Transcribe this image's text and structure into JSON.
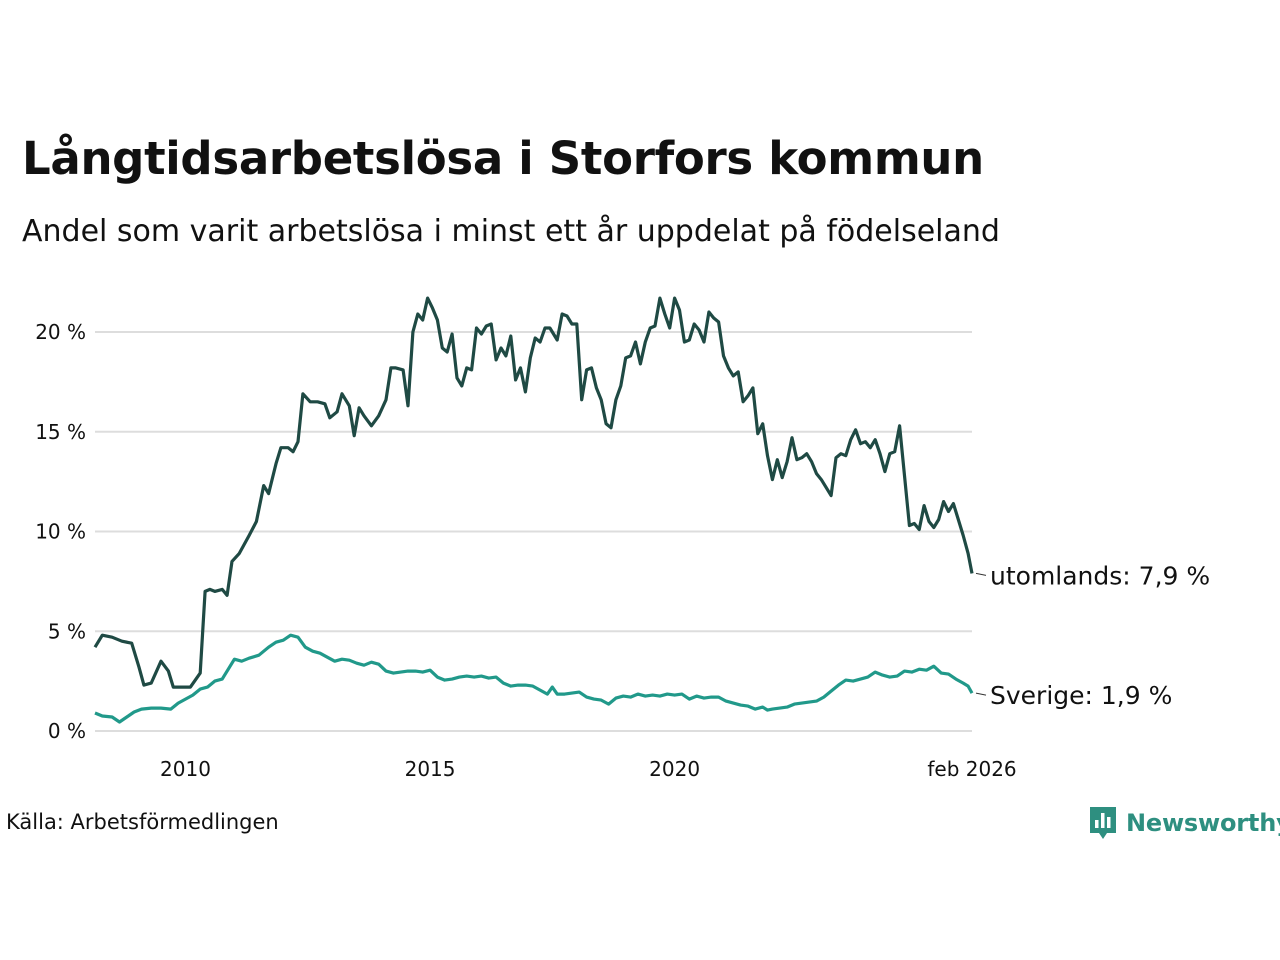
{
  "header": {
    "title": "Långtidsarbetslösa i Storfors kommun",
    "subtitle": "Andel som varit arbetslösa i minst ett år uppdelat på födelseland"
  },
  "footer": {
    "source": "Källa: Arbetsförmedlingen",
    "brand": "Newsworthy"
  },
  "colors": {
    "utomlands": "#1f4a44",
    "sverige": "#21998a",
    "grid": "#dddddd",
    "brand": "#2e8f80"
  },
  "chart_data": {
    "type": "line",
    "title": "Långtidsarbetslösa i Storfors kommun",
    "subtitle": "Andel som varit arbetslösa i minst ett år uppdelat på födelseland",
    "xlabel": "",
    "ylabel": "",
    "x_range": [
      2008.15,
      2026.08
    ],
    "ylim": [
      0,
      22
    ],
    "y_ticks": [
      {
        "value": 0,
        "label": "0 %"
      },
      {
        "value": 5,
        "label": "5 %"
      },
      {
        "value": 10,
        "label": "10 %"
      },
      {
        "value": 15,
        "label": "15 %"
      },
      {
        "value": 20,
        "label": "20 %"
      }
    ],
    "x_ticks": [
      {
        "value": 2010,
        "label": "2010"
      },
      {
        "value": 2015,
        "label": "2015"
      },
      {
        "value": 2020,
        "label": "2020"
      },
      {
        "value": 2026.08,
        "label": "feb 2026"
      }
    ],
    "grid": true,
    "series": [
      {
        "name": "utomlands",
        "end_label": "utomlands: 7,9 %",
        "points": [
          [
            2008.15,
            4.2
          ],
          [
            2008.3,
            4.8
          ],
          [
            2008.5,
            4.7
          ],
          [
            2008.7,
            4.5
          ],
          [
            2008.9,
            4.4
          ],
          [
            2009.05,
            3.2
          ],
          [
            2009.15,
            2.3
          ],
          [
            2009.3,
            2.4
          ],
          [
            2009.5,
            3.5
          ],
          [
            2009.65,
            3.0
          ],
          [
            2009.75,
            2.2
          ],
          [
            2009.9,
            2.2
          ],
          [
            2010.1,
            2.2
          ],
          [
            2010.3,
            2.9
          ],
          [
            2010.4,
            7.0
          ],
          [
            2010.5,
            7.1
          ],
          [
            2010.6,
            7.0
          ],
          [
            2010.75,
            7.1
          ],
          [
            2010.85,
            6.8
          ],
          [
            2010.95,
            8.5
          ],
          [
            2011.1,
            8.9
          ],
          [
            2011.3,
            9.8
          ],
          [
            2011.45,
            10.5
          ],
          [
            2011.6,
            12.3
          ],
          [
            2011.7,
            11.9
          ],
          [
            2011.85,
            13.4
          ],
          [
            2011.95,
            14.2
          ],
          [
            2012.1,
            14.2
          ],
          [
            2012.2,
            14.0
          ],
          [
            2012.3,
            14.5
          ],
          [
            2012.4,
            16.9
          ],
          [
            2012.55,
            16.5
          ],
          [
            2012.7,
            16.5
          ],
          [
            2012.85,
            16.4
          ],
          [
            2012.95,
            15.7
          ],
          [
            2013.1,
            16.0
          ],
          [
            2013.2,
            16.9
          ],
          [
            2013.35,
            16.3
          ],
          [
            2013.45,
            14.8
          ],
          [
            2013.55,
            16.2
          ],
          [
            2013.65,
            15.8
          ],
          [
            2013.8,
            15.3
          ],
          [
            2013.95,
            15.8
          ],
          [
            2014.1,
            16.6
          ],
          [
            2014.2,
            18.2
          ],
          [
            2014.3,
            18.2
          ],
          [
            2014.45,
            18.1
          ],
          [
            2014.55,
            16.3
          ],
          [
            2014.65,
            20.0
          ],
          [
            2014.75,
            20.9
          ],
          [
            2014.85,
            20.6
          ],
          [
            2014.95,
            21.7
          ],
          [
            2015.05,
            21.2
          ],
          [
            2015.15,
            20.6
          ],
          [
            2015.25,
            19.2
          ],
          [
            2015.35,
            19.0
          ],
          [
            2015.45,
            19.9
          ],
          [
            2015.55,
            17.7
          ],
          [
            2015.65,
            17.3
          ],
          [
            2015.75,
            18.2
          ],
          [
            2015.85,
            18.1
          ],
          [
            2015.95,
            20.2
          ],
          [
            2016.05,
            19.9
          ],
          [
            2016.15,
            20.3
          ],
          [
            2016.25,
            20.4
          ],
          [
            2016.35,
            18.6
          ],
          [
            2016.45,
            19.2
          ],
          [
            2016.55,
            18.8
          ],
          [
            2016.65,
            19.8
          ],
          [
            2016.75,
            17.6
          ],
          [
            2016.85,
            18.2
          ],
          [
            2016.95,
            17.0
          ],
          [
            2017.05,
            18.7
          ],
          [
            2017.15,
            19.7
          ],
          [
            2017.25,
            19.5
          ],
          [
            2017.35,
            20.2
          ],
          [
            2017.45,
            20.2
          ],
          [
            2017.6,
            19.6
          ],
          [
            2017.7,
            20.9
          ],
          [
            2017.8,
            20.8
          ],
          [
            2017.9,
            20.4
          ],
          [
            2018.0,
            20.4
          ],
          [
            2018.1,
            16.6
          ],
          [
            2018.2,
            18.1
          ],
          [
            2018.3,
            18.2
          ],
          [
            2018.4,
            17.2
          ],
          [
            2018.5,
            16.6
          ],
          [
            2018.6,
            15.4
          ],
          [
            2018.7,
            15.2
          ],
          [
            2018.8,
            16.6
          ],
          [
            2018.9,
            17.3
          ],
          [
            2019.0,
            18.7
          ],
          [
            2019.1,
            18.8
          ],
          [
            2019.2,
            19.5
          ],
          [
            2019.3,
            18.4
          ],
          [
            2019.4,
            19.5
          ],
          [
            2019.5,
            20.2
          ],
          [
            2019.6,
            20.3
          ],
          [
            2019.7,
            21.7
          ],
          [
            2019.8,
            20.9
          ],
          [
            2019.9,
            20.2
          ],
          [
            2020.0,
            21.7
          ],
          [
            2020.1,
            21.1
          ],
          [
            2020.2,
            19.5
          ],
          [
            2020.3,
            19.6
          ],
          [
            2020.4,
            20.4
          ],
          [
            2020.5,
            20.1
          ],
          [
            2020.6,
            19.5
          ],
          [
            2020.7,
            21.0
          ],
          [
            2020.8,
            20.7
          ],
          [
            2020.9,
            20.5
          ],
          [
            2021.0,
            18.8
          ],
          [
            2021.1,
            18.2
          ],
          [
            2021.2,
            17.8
          ],
          [
            2021.3,
            18.0
          ],
          [
            2021.4,
            16.5
          ],
          [
            2021.5,
            16.8
          ],
          [
            2021.6,
            17.2
          ],
          [
            2021.7,
            14.9
          ],
          [
            2021.8,
            15.4
          ],
          [
            2021.9,
            13.8
          ],
          [
            2022.0,
            12.6
          ],
          [
            2022.1,
            13.6
          ],
          [
            2022.2,
            12.7
          ],
          [
            2022.3,
            13.5
          ],
          [
            2022.4,
            14.7
          ],
          [
            2022.5,
            13.6
          ],
          [
            2022.6,
            13.7
          ],
          [
            2022.7,
            13.9
          ],
          [
            2022.8,
            13.5
          ],
          [
            2022.9,
            12.9
          ],
          [
            2023.0,
            12.6
          ],
          [
            2023.1,
            12.2
          ],
          [
            2023.2,
            11.8
          ],
          [
            2023.3,
            13.7
          ],
          [
            2023.4,
            13.9
          ],
          [
            2023.5,
            13.8
          ],
          [
            2023.6,
            14.6
          ],
          [
            2023.7,
            15.1
          ],
          [
            2023.8,
            14.4
          ],
          [
            2023.9,
            14.5
          ],
          [
            2024.0,
            14.2
          ],
          [
            2024.1,
            14.6
          ],
          [
            2024.2,
            13.9
          ],
          [
            2024.3,
            13.0
          ],
          [
            2024.4,
            13.9
          ],
          [
            2024.5,
            14.0
          ],
          [
            2024.6,
            15.3
          ]
        ]
      },
      {
        "name": "Sverige",
        "end_label": "Sverige: 1,9 %",
        "points": []
      }
    ]
  }
}
